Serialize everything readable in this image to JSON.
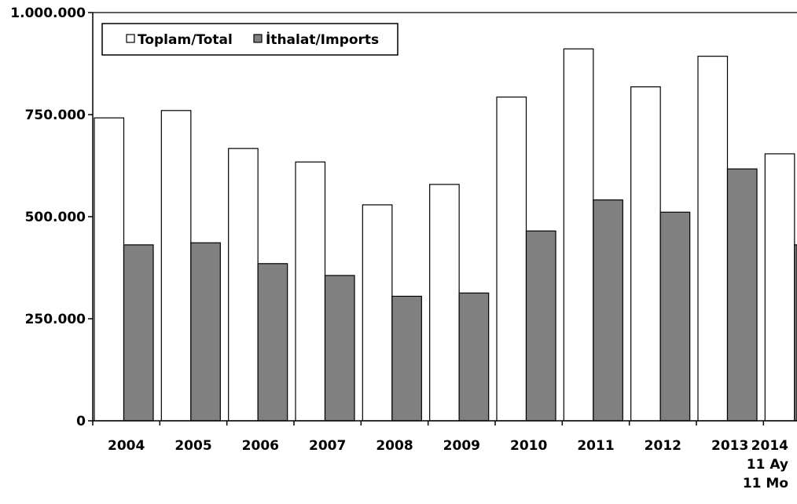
{
  "chart_data": {
    "type": "bar",
    "categories": [
      [
        "2004"
      ],
      [
        "2005"
      ],
      [
        "2006"
      ],
      [
        "2007"
      ],
      [
        "2008"
      ],
      [
        "2009"
      ],
      [
        "2010"
      ],
      [
        "2011"
      ],
      [
        "2012"
      ],
      [
        "2013"
      ],
      [
        "2014",
        "11 Ay",
        "11 Mo"
      ]
    ],
    "series": [
      {
        "name": "Toplam/Total",
        "color": "#ffffff",
        "values": [
          742000,
          760000,
          667000,
          634000,
          529000,
          579000,
          793000,
          911000,
          818000,
          893000,
          654000
        ]
      },
      {
        "name": "İthalat/Imports",
        "color": "#808080",
        "values": [
          431000,
          436000,
          385000,
          356000,
          305000,
          313000,
          465000,
          541000,
          511000,
          617000,
          431000
        ]
      }
    ],
    "ylim": [
      0,
      1000000
    ],
    "yticks": [
      {
        "value": 0,
        "label": "0"
      },
      {
        "value": 250000,
        "label": "250.000"
      },
      {
        "value": 500000,
        "label": "500.000"
      },
      {
        "value": 750000,
        "label": "750.000"
      },
      {
        "value": 1000000,
        "label": "1.000.000"
      }
    ],
    "grid": false,
    "legend_position": "top-left",
    "title": "",
    "xlabel": "",
    "ylabel": ""
  }
}
